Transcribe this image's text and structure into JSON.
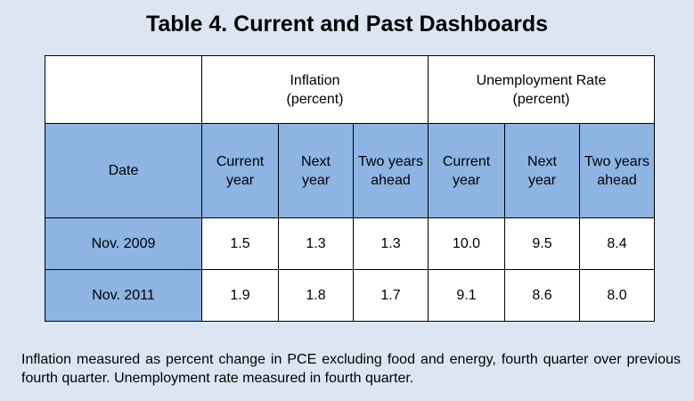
{
  "title": "Table 4. Current and Past Dashboards",
  "groups": {
    "inflation": {
      "line1": "Inflation",
      "line2": "(percent)"
    },
    "unemployment": {
      "line1": "Unemployment Rate",
      "line2": "(percent)"
    }
  },
  "columns": {
    "date": "Date",
    "current_year": {
      "line1": "Current",
      "line2": "year"
    },
    "next_year": {
      "line1": "Next",
      "line2": "year"
    },
    "two_years_ahead": {
      "line1": "Two years",
      "line2": "ahead"
    }
  },
  "rows": [
    {
      "date": "Nov. 2009",
      "inf_current": "1.5",
      "inf_next": "1.3",
      "inf_two": "1.3",
      "unemp_current": "10.0",
      "unemp_next": "9.5",
      "unemp_two": "8.4"
    },
    {
      "date": "Nov. 2011",
      "inf_current": "1.9",
      "inf_next": "1.8",
      "inf_two": "1.7",
      "unemp_current": "9.1",
      "unemp_next": "8.6",
      "unemp_two": "8.0"
    }
  ],
  "footnote": "Inflation measured as percent change in PCE excluding food and energy, fourth quarter over previous fourth quarter.  Unemployment rate measured in fourth quarter.",
  "colors": {
    "background": "#dce6f2",
    "header_fill": "#8db4e3",
    "cell_fill": "#ffffff"
  }
}
